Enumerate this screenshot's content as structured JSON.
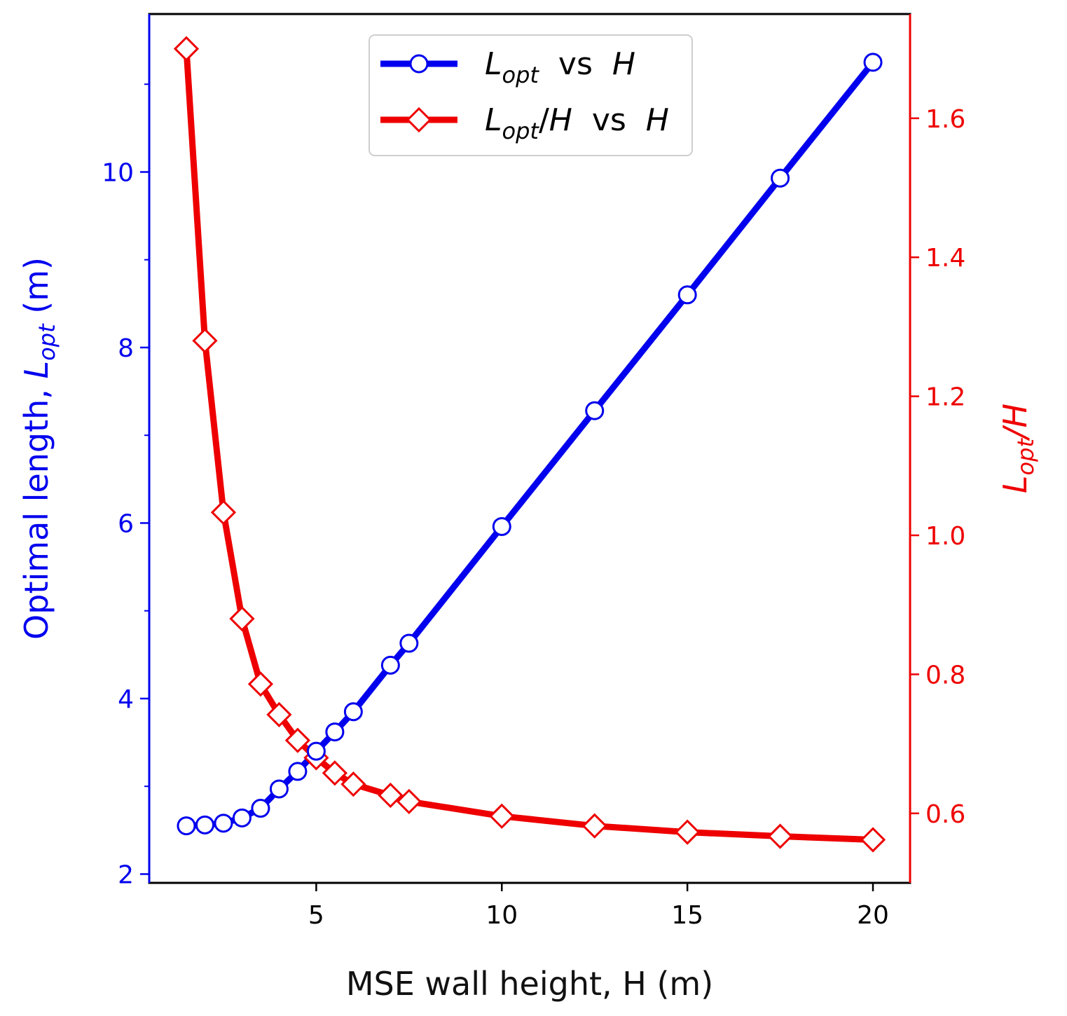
{
  "chart_data": {
    "type": "line",
    "xlabel": "MSE wall height, H (m)",
    "ylabel_left": {
      "prefix": "Optimal length, ",
      "var": "L",
      "sub": "opt",
      "suffix": " (m)"
    },
    "ylabel_right": {
      "var": "L",
      "sub": "opt",
      "suffix": "/H"
    },
    "xlim": [
      0.5,
      21
    ],
    "ylim_left": [
      1.9,
      11.8
    ],
    "ylim_right": [
      0.5,
      1.75
    ],
    "xticks": [
      5,
      10,
      15,
      20
    ],
    "yticks_left": [
      2,
      4,
      6,
      8,
      10
    ],
    "yticks_left_minor": [
      3,
      5,
      7,
      9,
      11
    ],
    "yticks_right": [
      0.6,
      0.8,
      1.0,
      1.2,
      1.4,
      1.6
    ],
    "yticks_right_labels": [
      "0.6",
      "0.8",
      "1.0",
      "1.2",
      "1.4",
      "1.6"
    ],
    "legend_position": "top-center",
    "series": [
      {
        "name": "Lopt vs H",
        "legend": {
          "var": "L",
          "sub": "opt",
          "mid": "  vs  ",
          "var2": "H"
        },
        "axis": "left",
        "color": "#0000ee",
        "marker": "circle",
        "x": [
          1.5,
          2,
          2.5,
          3,
          3.5,
          4,
          4.5,
          5,
          5.5,
          6,
          7,
          7.5,
          10,
          12.5,
          15,
          17.5,
          20
        ],
        "y": [
          2.55,
          2.56,
          2.58,
          2.64,
          2.75,
          2.97,
          3.17,
          3.4,
          3.62,
          3.85,
          4.38,
          4.63,
          5.96,
          7.28,
          8.6,
          9.93,
          11.25
        ]
      },
      {
        "name": "Lopt/H vs H",
        "legend": {
          "var": "L",
          "sub": "opt",
          "mid": "/",
          "var2": "H",
          "mid2": "  vs  ",
          "var3": "H"
        },
        "axis": "right",
        "color": "#ee0000",
        "marker": "diamond",
        "x": [
          1.5,
          2,
          2.5,
          3,
          3.5,
          4,
          4.5,
          5,
          5.5,
          6,
          7,
          7.5,
          10,
          12.5,
          15,
          17.5,
          20
        ],
        "y": [
          1.7,
          1.28,
          1.033,
          0.88,
          0.786,
          0.742,
          0.705,
          0.68,
          0.658,
          0.642,
          0.626,
          0.617,
          0.596,
          0.582,
          0.573,
          0.567,
          0.562
        ]
      }
    ]
  }
}
